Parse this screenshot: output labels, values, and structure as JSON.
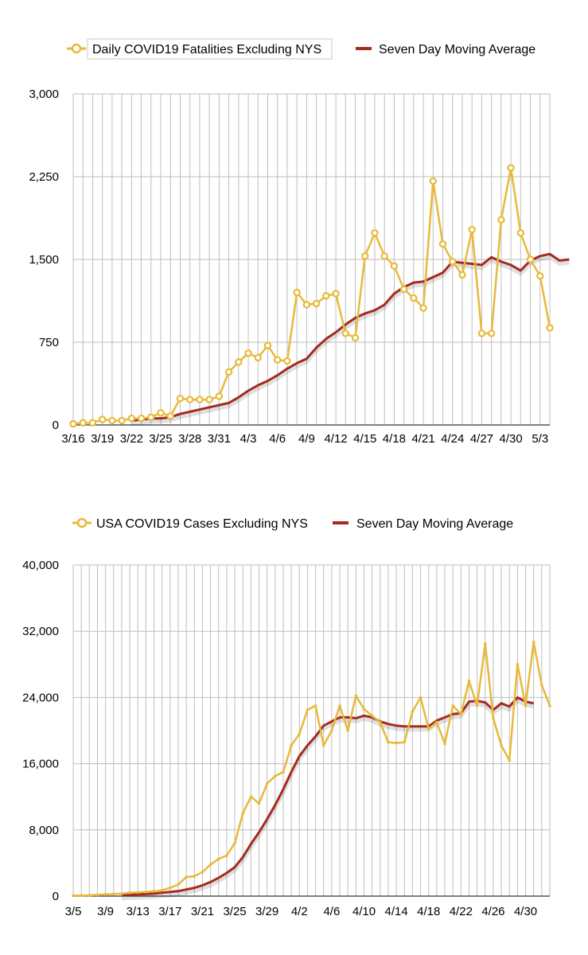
{
  "colors": {
    "daily": "#E8B93A",
    "average": "#A52A1E",
    "grid": "#BEBEBE"
  },
  "chart_data": [
    {
      "type": "line",
      "legend": {
        "daily": "Daily COVID19 Fatalities Excluding NYS",
        "average": "Seven Day Moving Average"
      },
      "ylim": [
        0,
        3000
      ],
      "yticks": [
        0,
        750,
        1500,
        2250,
        3000
      ],
      "ytick_labels": [
        "0",
        "750",
        "1,500",
        "2,250",
        "3,000"
      ],
      "xtick_labels": [
        "3/16",
        "3/19",
        "3/22",
        "3/25",
        "3/28",
        "3/31",
        "4/3",
        "4/6",
        "4/9",
        "4/12",
        "4/15",
        "4/18",
        "4/21",
        "4/24",
        "4/27",
        "4/30",
        "5/3"
      ],
      "xtick_every": 3,
      "first_day": "3/16",
      "series": [
        {
          "name": "Daily COVID19 Fatalities Excluding NYS",
          "values": [
            10,
            20,
            20,
            50,
            40,
            40,
            60,
            60,
            70,
            110,
            80,
            240,
            230,
            230,
            230,
            260,
            480,
            570,
            650,
            610,
            720,
            590,
            580,
            1200,
            1090,
            1100,
            1170,
            1190,
            830,
            790,
            1530,
            1740,
            1530,
            1440,
            1230,
            1150,
            1060,
            2210,
            1640,
            1480,
            1360,
            1770,
            830,
            830,
            1860,
            2330,
            1740,
            1500,
            1350,
            880
          ]
        },
        {
          "name": "Seven Day Moving Average",
          "start_index": 6,
          "values": [
            40,
            50,
            60,
            60,
            70,
            100,
            120,
            140,
            160,
            180,
            200,
            250,
            310,
            360,
            400,
            450,
            510,
            560,
            600,
            700,
            780,
            840,
            910,
            970,
            1010,
            1040,
            1090,
            1190,
            1250,
            1290,
            1300,
            1340,
            1380,
            1480,
            1470,
            1460,
            1450,
            1520,
            1480,
            1450,
            1400,
            1490,
            1530,
            1550,
            1490,
            1500
          ]
        }
      ]
    },
    {
      "type": "line",
      "legend": {
        "daily": "USA COVID19 Cases Excluding NYS",
        "average": "Seven Day Moving Average"
      },
      "ylim": [
        0,
        40000
      ],
      "yticks": [
        0,
        8000,
        16000,
        24000,
        32000,
        40000
      ],
      "ytick_labels": [
        "0",
        "8,000",
        "16,000",
        "24,000",
        "32,000",
        "40,000"
      ],
      "xtick_labels": [
        "3/5",
        "3/9",
        "3/13",
        "3/17",
        "3/21",
        "3/25",
        "3/29",
        "4/2",
        "4/6",
        "4/10",
        "4/14",
        "4/18",
        "4/22",
        "4/26",
        "4/30"
      ],
      "xtick_every": 4,
      "first_day": "3/5",
      "series": [
        {
          "name": "USA COVID19 Cases Excluding NYS",
          "values": [
            50,
            80,
            100,
            150,
            200,
            250,
            300,
            400,
            450,
            500,
            600,
            700,
            1000,
            1400,
            2300,
            2400,
            2900,
            3800,
            4500,
            4900,
            6400,
            10000,
            12000,
            11200,
            13600,
            14500,
            15000,
            18200,
            19600,
            22500,
            23000,
            18200,
            20000,
            23000,
            20000,
            24200,
            22600,
            21800,
            21000,
            18600,
            18500,
            18600,
            22300,
            24000,
            20200,
            21000,
            18400,
            23000,
            22000,
            26000,
            23000,
            30500,
            21500,
            18200,
            16400,
            28000,
            23000,
            30700,
            25500,
            23000
          ]
        },
        {
          "name": "Seven Day Moving Average",
          "start_index": 6,
          "values": [
            100,
            150,
            200,
            250,
            300,
            400,
            500,
            600,
            800,
            1000,
            1300,
            1700,
            2200,
            2800,
            3500,
            4700,
            6300,
            7700,
            9300,
            11000,
            12900,
            15000,
            16900,
            18200,
            19300,
            20600,
            21100,
            21600,
            21600,
            21500,
            21800,
            21600,
            21100,
            20800,
            20600,
            20500,
            20500,
            20500,
            20500,
            21200,
            21600,
            22000,
            22100,
            23500,
            23600,
            23400,
            22500,
            23300,
            22900,
            24000,
            23500,
            23300
          ]
        }
      ]
    }
  ]
}
